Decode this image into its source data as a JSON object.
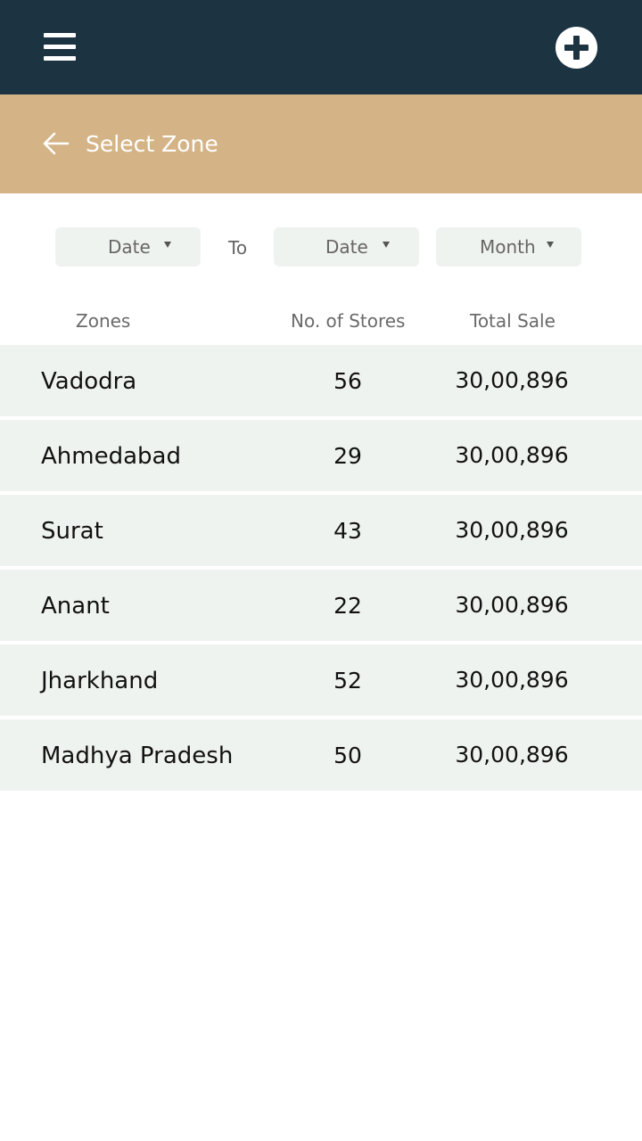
{
  "header": {
    "menu_icon": "hamburger-menu-icon",
    "add_icon": "plus-circle-icon"
  },
  "subheader": {
    "back_icon": "arrow-left-icon",
    "title": "Select Zone"
  },
  "filters": {
    "from_date": "Date",
    "to_label": "To",
    "to_date": "Date",
    "month": "Month"
  },
  "table": {
    "headers": {
      "zones": "Zones",
      "stores": "No. of Stores",
      "sale": "Total Sale"
    },
    "rows": [
      {
        "zone": "Vadodra",
        "stores": "56",
        "sale": "30,00,896"
      },
      {
        "zone": "Ahmedabad",
        "stores": "29",
        "sale": "30,00,896"
      },
      {
        "zone": "Surat",
        "stores": "43",
        "sale": "30,00,896"
      },
      {
        "zone": "Anant",
        "stores": "22",
        "sale": "30,00,896"
      },
      {
        "zone": "Jharkhand",
        "stores": "52",
        "sale": "30,00,896"
      },
      {
        "zone": "Madhya Pradesh",
        "stores": "50",
        "sale": "30,00,896"
      }
    ]
  },
  "colors": {
    "topbar": "#1c3342",
    "subbar": "#d4b487",
    "row_bg": "#eff3f0"
  }
}
